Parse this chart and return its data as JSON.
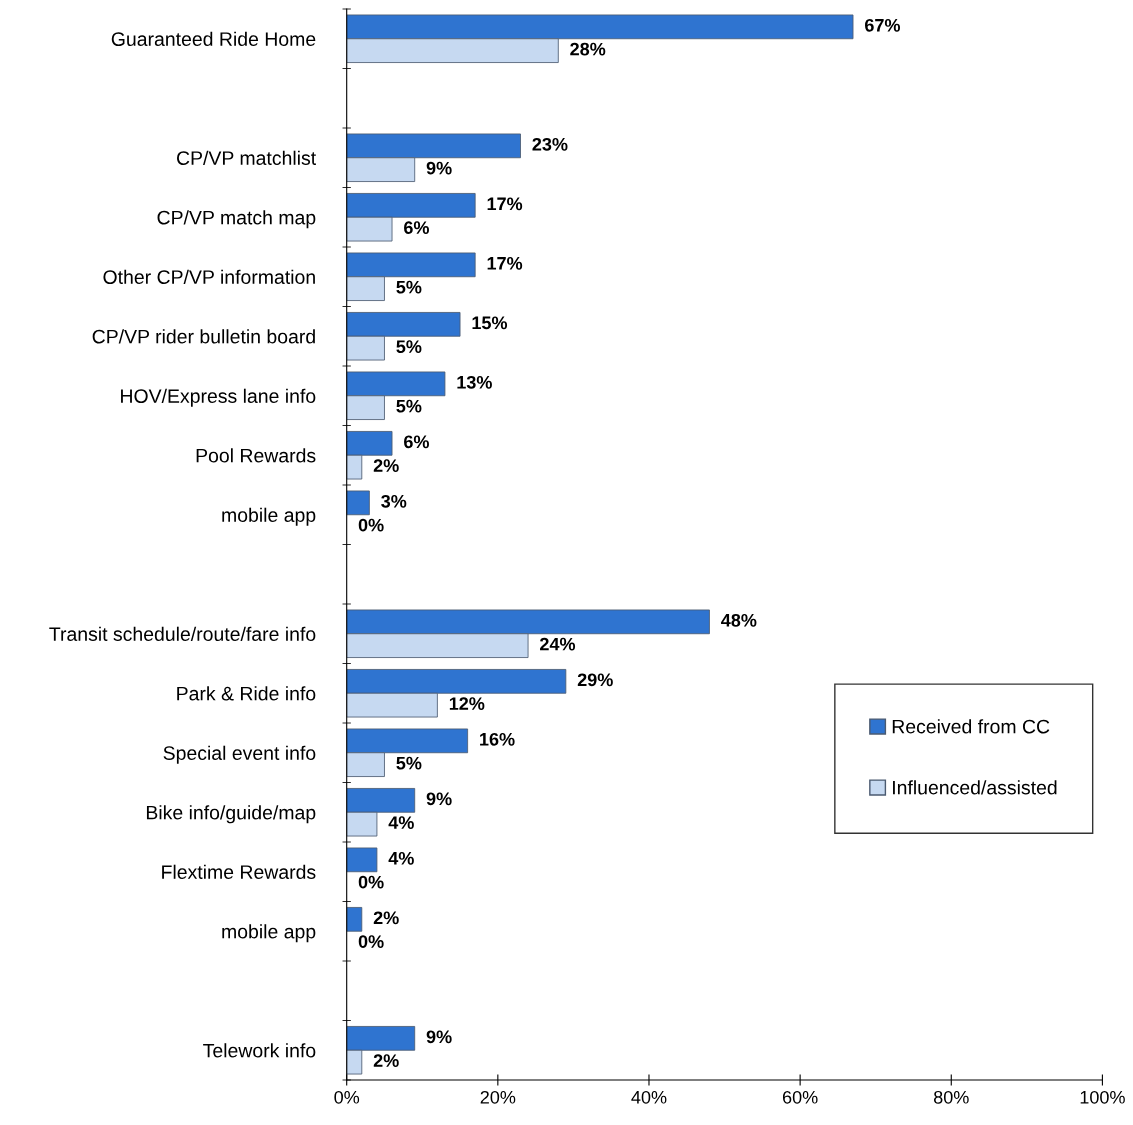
{
  "chart_data": {
    "type": "bar",
    "orientation": "horizontal",
    "categories": [
      "Guaranteed Ride Home",
      null,
      "CP/VP matchlist",
      "CP/VP match map",
      "Other CP/VP information",
      "CP/VP rider bulletin board",
      "HOV/Express lane info",
      "Pool Rewards",
      "mobile app",
      null,
      "Transit schedule/route/fare info",
      "Park & Ride info",
      "Special event info",
      "Bike info/guide/map",
      "Flextime Rewards",
      "mobile app",
      null,
      "Telework info"
    ],
    "series": [
      {
        "name": "Received from CC",
        "color": "#2f74d0",
        "values": [
          67,
          null,
          23,
          17,
          17,
          15,
          13,
          6,
          3,
          null,
          48,
          29,
          16,
          9,
          4,
          2,
          null,
          9
        ],
        "value_labels": [
          "67%",
          null,
          "23%",
          "17%",
          "17%",
          "15%",
          "13%",
          "6%",
          "3%",
          null,
          "48%",
          "29%",
          "16%",
          "9%",
          "4%",
          "2%",
          null,
          "9%"
        ]
      },
      {
        "name": "Influenced/assisted",
        "color": "#c6d9f1",
        "values": [
          28,
          null,
          9,
          6,
          5,
          5,
          5,
          2,
          0,
          null,
          24,
          12,
          5,
          4,
          0,
          0,
          null,
          2
        ],
        "value_labels": [
          "28%",
          null,
          "9%",
          "6%",
          "5%",
          "5%",
          "5%",
          "2%",
          "0%",
          null,
          "24%",
          "12%",
          "5%",
          "4%",
          "0%",
          "0%",
          null,
          "2%"
        ]
      }
    ],
    "xlim": [
      0,
      100
    ],
    "xticks": [
      {
        "value": 0,
        "label": "0%"
      },
      {
        "value": 20,
        "label": "20%"
      },
      {
        "value": 40,
        "label": "40%"
      },
      {
        "value": 60,
        "label": "60%"
      },
      {
        "value": 80,
        "label": "80%"
      },
      {
        "value": 100,
        "label": "100%"
      }
    ],
    "legend": "right",
    "grid": false
  }
}
